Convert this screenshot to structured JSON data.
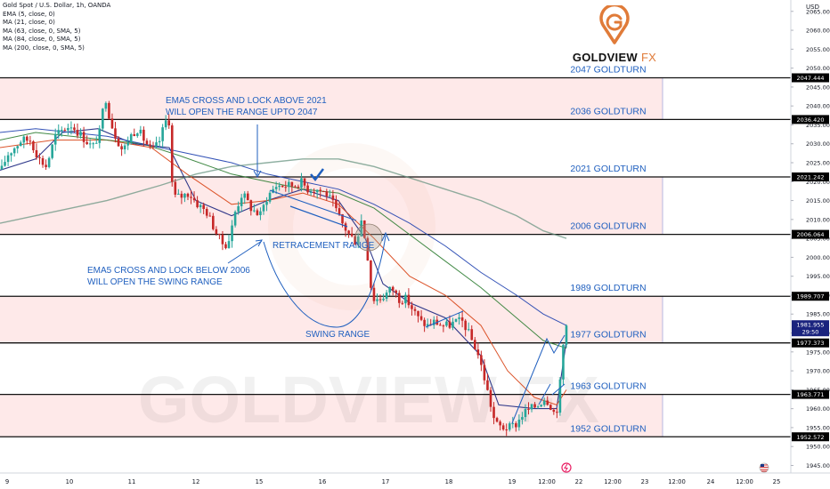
{
  "symbol_line": "Gold Spot / U.S. Dollar, 1h, OANDA",
  "indicators": [
    "EMA (5, close, 0)",
    "MA (21, close, 0)",
    "MA (63, close, 0, SMA, 5)",
    "MA (84, close, 0, SMA, 5)",
    "MA (200, close, 0, SMA, 5)"
  ],
  "logo": {
    "word": "GOLDVIEW",
    "suffix": "FX"
  },
  "watermark": "GOLDVIEW FX",
  "colors": {
    "up": "#26a69a",
    "down": "#c62828",
    "ema5": "#1a237e",
    "ma21": "#d84315",
    "ma63": "#1e40af",
    "ma84": "#2e7d32",
    "ma200": "#5f8f7a",
    "annotation": "#1f5fbf",
    "zone": "#fde2e2",
    "price_tag": "#1a237e"
  },
  "chart_data": {
    "type": "candlestick",
    "y_axis": {
      "label": "USD",
      "range": [
        1943,
        2068
      ],
      "ticks": [
        2065,
        2060,
        2055,
        2050,
        2045,
        2040,
        2035,
        2030,
        2025,
        2020,
        2015,
        2010,
        2005,
        2000,
        1995,
        1990,
        1985,
        1980,
        1975,
        1970,
        1965,
        1960,
        1955,
        1950,
        1945
      ],
      "tick_labels": [
        "2065.000",
        "2060.000",
        "2055.000",
        "2050.000",
        "2045.000",
        "2040.000",
        "2035.000",
        "2030.000",
        "2025.000",
        "2020.000",
        "2015.000",
        "2010.000",
        "2005.000",
        "2000.000",
        "1995.000",
        "1990.000",
        "1985.000",
        "1980.000",
        "1975.000",
        "1970.000",
        "1965.000",
        "1960.000",
        "1955.000",
        "1950.000",
        "1945.000"
      ]
    },
    "x_axis": {
      "labels": [
        "9",
        "10",
        "11",
        "12",
        "15",
        "16",
        "17",
        "18",
        "19",
        "12:00",
        "22",
        "12:00",
        "23",
        "12:00",
        "24",
        "12:00",
        "25"
      ]
    },
    "price_tags": [
      {
        "value": 2047.444,
        "label": "2047.444"
      },
      {
        "value": 2036.42,
        "label": "2036.420"
      },
      {
        "value": 2021.242,
        "label": "2021.242"
      },
      {
        "value": 2006.064,
        "label": "2006.064"
      },
      {
        "value": 1989.707,
        "label": "1989.707"
      },
      {
        "value": 1977.373,
        "label": "1977.373"
      },
      {
        "value": 1963.771,
        "label": "1963.771"
      },
      {
        "value": 1952.572,
        "label": "1952.572"
      }
    ],
    "current_price": {
      "value": 1981.955,
      "label": "1981.955",
      "countdown": "29:50"
    },
    "levels": [
      {
        "value": 2047.444,
        "label": "2047 GOLDTURN"
      },
      {
        "value": 2036.42,
        "label": "2036 GOLDTURN"
      },
      {
        "value": 2021.242,
        "label": "2021 GOLDTURN"
      },
      {
        "value": 2006.064,
        "label": "2006 GOLDTURN"
      },
      {
        "value": 1989.707,
        "label": "1989 GOLDTURN"
      },
      {
        "value": 1977.373,
        "label": "1977 GOLDTURN"
      },
      {
        "value": 1963.771,
        "label": "1963 GOLDTURN"
      },
      {
        "value": 1952.572,
        "label": "1952 GOLDTURN"
      }
    ],
    "zones": [
      {
        "from": 2036.42,
        "to": 2047.444
      },
      {
        "from": 2006.064,
        "to": 2021.242
      },
      {
        "from": 1977.373,
        "to": 1989.707
      },
      {
        "from": 1952.572,
        "to": 1963.771
      }
    ],
    "annotations": [
      {
        "lines": [
          "EMA5 CROSS AND LOCK ABOVE 2021",
          "WILL OPEN THE RANGE UPTO 2047"
        ]
      },
      {
        "lines": [
          "RETRACEMENT RANGE"
        ]
      },
      {
        "lines": [
          "EMA5 CROSS AND LOCK BELOW 2006",
          "WILL OPEN THE SWING RANGE"
        ]
      },
      {
        "lines": [
          "SWING RANGE"
        ]
      }
    ],
    "candle_path": [
      [
        0,
        2022
      ],
      [
        8,
        2027
      ],
      [
        16,
        2029
      ],
      [
        24,
        2031
      ],
      [
        34,
        2031
      ],
      [
        44,
        2026
      ],
      [
        52,
        2024
      ],
      [
        62,
        2032
      ],
      [
        72,
        2034
      ],
      [
        80,
        2035
      ],
      [
        88,
        2033
      ],
      [
        96,
        2031
      ],
      [
        104,
        2029
      ],
      [
        112,
        2033
      ],
      [
        118,
        2043
      ],
      [
        124,
        2036
      ],
      [
        130,
        2032
      ],
      [
        138,
        2028
      ],
      [
        146,
        2032
      ],
      [
        154,
        2034
      ],
      [
        162,
        2031
      ],
      [
        170,
        2028
      ],
      [
        178,
        2030
      ],
      [
        186,
        2036
      ],
      [
        190,
        2036
      ],
      [
        194,
        2016
      ],
      [
        202,
        2016
      ],
      [
        212,
        2017
      ],
      [
        222,
        2014
      ],
      [
        232,
        2012
      ],
      [
        240,
        2008
      ],
      [
        246,
        2005
      ],
      [
        252,
        2003
      ],
      [
        258,
        2005
      ],
      [
        264,
        2012
      ],
      [
        272,
        2017
      ],
      [
        282,
        2013
      ],
      [
        292,
        2011
      ],
      [
        300,
        2016
      ],
      [
        310,
        2019
      ],
      [
        320,
        2019
      ],
      [
        330,
        2019
      ],
      [
        338,
        2020
      ],
      [
        346,
        2018
      ],
      [
        356,
        2018
      ],
      [
        366,
        2017
      ],
      [
        374,
        2014
      ],
      [
        384,
        2009
      ],
      [
        392,
        2006
      ],
      [
        400,
        2004
      ],
      [
        406,
        2010
      ],
      [
        412,
        2002
      ],
      [
        418,
        1989
      ],
      [
        426,
        1989
      ],
      [
        432,
        1990
      ],
      [
        440,
        1992
      ],
      [
        448,
        1989
      ],
      [
        456,
        1989
      ],
      [
        464,
        1986
      ],
      [
        472,
        1983
      ],
      [
        480,
        1982
      ],
      [
        488,
        1983
      ],
      [
        496,
        1982
      ],
      [
        504,
        1982
      ],
      [
        512,
        1983
      ],
      [
        520,
        1983
      ],
      [
        528,
        1979
      ],
      [
        536,
        1975
      ],
      [
        544,
        1968
      ],
      [
        550,
        1962
      ],
      [
        556,
        1956
      ],
      [
        564,
        1955
      ],
      [
        572,
        1955
      ],
      [
        580,
        1956
      ],
      [
        588,
        1959
      ],
      [
        596,
        1960
      ],
      [
        604,
        1961
      ],
      [
        612,
        1963
      ],
      [
        618,
        1961
      ],
      [
        624,
        1958
      ],
      [
        628,
        1964
      ],
      [
        632,
        1976
      ],
      [
        636,
        1982
      ]
    ],
    "candle_count": 180,
    "moving_averages": [
      {
        "name": "EMA (5, close, 0)",
        "points": [
          [
            0,
            2023
          ],
          [
            40,
            2026
          ],
          [
            70,
            2033
          ],
          [
            110,
            2034
          ],
          [
            150,
            2030
          ],
          [
            190,
            2029
          ],
          [
            220,
            2015
          ],
          [
            260,
            2011
          ],
          [
            300,
            2015
          ],
          [
            340,
            2018
          ],
          [
            380,
            2015
          ],
          [
            410,
            2005
          ],
          [
            430,
            1993
          ],
          [
            460,
            1988
          ],
          [
            500,
            1984
          ],
          [
            540,
            1974
          ],
          [
            560,
            1961
          ],
          [
            600,
            1960
          ],
          [
            625,
            1960
          ],
          [
            636,
            1978
          ]
        ]
      },
      {
        "name": "MA (21, close, 0)",
        "points": [
          [
            0,
            2029
          ],
          [
            60,
            2031
          ],
          [
            120,
            2031
          ],
          [
            170,
            2029
          ],
          [
            210,
            2022
          ],
          [
            260,
            2014
          ],
          [
            300,
            2015
          ],
          [
            340,
            2017
          ],
          [
            380,
            2014
          ],
          [
            420,
            2005
          ],
          [
            460,
            1995
          ],
          [
            500,
            1990
          ],
          [
            540,
            1982
          ],
          [
            570,
            1970
          ],
          [
            600,
            1963
          ],
          [
            625,
            1961
          ],
          [
            636,
            1965
          ]
        ]
      },
      {
        "name": "MA (84, close, 0, SMA, 5)",
        "points": [
          [
            0,
            2031
          ],
          [
            40,
            2033
          ],
          [
            80,
            2032
          ],
          [
            120,
            2031
          ],
          [
            160,
            2030
          ],
          [
            200,
            2027
          ],
          [
            260,
            2022
          ],
          [
            300,
            2020
          ],
          [
            340,
            2018
          ],
          [
            380,
            2017
          ],
          [
            420,
            2013
          ],
          [
            460,
            2006
          ],
          [
            500,
            1999
          ],
          [
            540,
            1992
          ],
          [
            580,
            1984
          ],
          [
            610,
            1978
          ],
          [
            636,
            1976
          ]
        ]
      },
      {
        "name": "MA (63, close, 0, SMA, 5)",
        "points": [
          [
            0,
            2033
          ],
          [
            40,
            2034
          ],
          [
            80,
            2033
          ],
          [
            120,
            2032
          ],
          [
            160,
            2030
          ],
          [
            200,
            2028
          ],
          [
            260,
            2025
          ],
          [
            300,
            2022
          ],
          [
            340,
            2020
          ],
          [
            380,
            2018
          ],
          [
            420,
            2014
          ],
          [
            460,
            2009
          ],
          [
            500,
            2003
          ],
          [
            540,
            1996
          ],
          [
            580,
            1990
          ],
          [
            610,
            1985
          ],
          [
            636,
            1982
          ]
        ]
      },
      {
        "name": "MA (200, close, 0, SMA, 5)",
        "points": [
          [
            0,
            2009
          ],
          [
            60,
            2012
          ],
          [
            120,
            2015
          ],
          [
            180,
            2019
          ],
          [
            220,
            2022
          ],
          [
            260,
            2024
          ],
          [
            300,
            2025
          ],
          [
            340,
            2026
          ],
          [
            380,
            2026
          ],
          [
            420,
            2024
          ],
          [
            460,
            2021
          ],
          [
            500,
            2018
          ],
          [
            540,
            2015
          ],
          [
            580,
            2011
          ],
          [
            610,
            2007
          ],
          [
            636,
            2005
          ]
        ]
      }
    ]
  }
}
